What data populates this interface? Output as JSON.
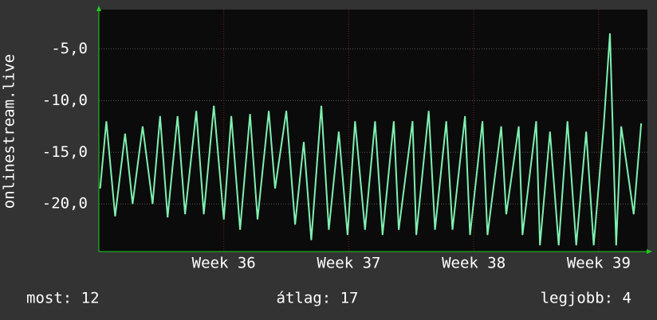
{
  "chart_data": {
    "type": "line",
    "ylabel": "onlinestream.live",
    "annotations": [
      "most: 12",
      "átlag: 17",
      "legjobb: 4"
    ],
    "xlim": [
      35,
      39.39
    ],
    "xticks": [
      {
        "value": 36,
        "label": "Week 36"
      },
      {
        "value": 37,
        "label": "Week 37"
      },
      {
        "value": 38,
        "label": "Week 38"
      },
      {
        "value": 39,
        "label": "Week 39"
      }
    ],
    "ylim": [
      -24.6,
      -1.2
    ],
    "yticks": [
      {
        "value": -20,
        "label": "-20,0"
      },
      {
        "value": -15,
        "label": "-15,0"
      },
      {
        "value": -10,
        "label": "-10,0"
      },
      {
        "value": -5,
        "label": "-5,0"
      }
    ],
    "grid": true,
    "x": [
      35.01,
      35.06,
      35.13,
      35.21,
      35.27,
      35.35,
      35.43,
      35.49,
      35.55,
      35.63,
      35.69,
      35.78,
      35.84,
      35.92,
      36.0,
      36.06,
      36.13,
      36.21,
      36.27,
      36.36,
      36.41,
      36.5,
      36.57,
      36.64,
      36.7,
      36.78,
      36.84,
      36.92,
      36.99,
      37.05,
      37.13,
      37.21,
      37.27,
      37.36,
      37.4,
      37.51,
      37.54,
      37.64,
      37.69,
      37.78,
      37.83,
      37.93,
      37.97,
      38.07,
      38.11,
      38.22,
      38.26,
      38.36,
      38.39,
      38.5,
      38.53,
      38.61,
      38.68,
      38.75,
      38.82,
      38.9,
      38.96,
      39.04,
      39.09,
      39.14,
      39.18,
      39.28,
      39.34
    ],
    "series": [
      {
        "color": "#7ff0b0",
        "values": [
          -18.5,
          -12,
          -21.2,
          -13.2,
          -20,
          -12.5,
          -20,
          -11.5,
          -21.3,
          -11.5,
          -21,
          -11,
          -21,
          -10.5,
          -21.5,
          -11.5,
          -22.5,
          -11.3,
          -21.5,
          -11,
          -18.5,
          -11,
          -22,
          -14,
          -23.5,
          -10.5,
          -22.5,
          -13,
          -23,
          -12,
          -22.5,
          -12,
          -23,
          -12,
          -22.5,
          -12,
          -23,
          -11,
          -22.5,
          -12,
          -22.5,
          -11.5,
          -23,
          -12,
          -23,
          -12.5,
          -21,
          -12.5,
          -23,
          -12,
          -24,
          -13,
          -24,
          -12,
          -24,
          -13,
          -24,
          -12.5,
          -3.5,
          -24,
          -12.5,
          -21,
          -12.2
        ]
      }
    ]
  }
}
